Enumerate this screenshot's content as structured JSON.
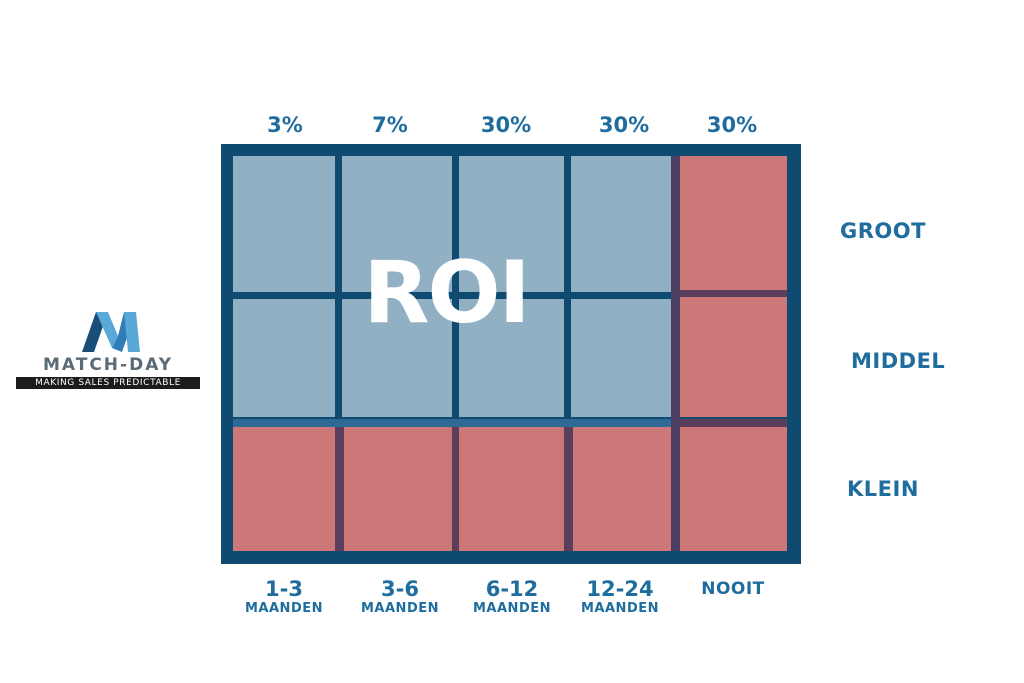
{
  "logo": {
    "name": "MATCH-DAY",
    "tagline": "MAKING SALES PREDICTABLE",
    "colors": {
      "mark_dark": "#1a4e78",
      "mark_light": "#5aa8d8",
      "text": "#5a6b76"
    }
  },
  "center_label": "ROI",
  "percentages": [
    "3%",
    "7%",
    "30%",
    "30%",
    "30%"
  ],
  "rows": [
    {
      "label": "GROOT",
      "cells": [
        "blue",
        "blue",
        "blue",
        "blue",
        "red"
      ]
    },
    {
      "label": "MIDDEL",
      "cells": [
        "blue",
        "blue",
        "blue",
        "blue",
        "red"
      ]
    },
    {
      "label": "KLEIN",
      "cells": [
        "red",
        "red",
        "red",
        "red",
        "red"
      ]
    }
  ],
  "columns": [
    {
      "range": "1-3",
      "unit": "MAANDEN"
    },
    {
      "range": "3-6",
      "unit": "MAANDEN"
    },
    {
      "range": "6-12",
      "unit": "MAANDEN"
    },
    {
      "range": "12-24",
      "unit": "MAANDEN"
    },
    {
      "range": "NOOIT",
      "unit": ""
    }
  ],
  "colors": {
    "text": "#1f6d9e",
    "frame": "#0f4a70",
    "cell_blue": "#91b0c3",
    "cell_red": "#cc7879"
  }
}
